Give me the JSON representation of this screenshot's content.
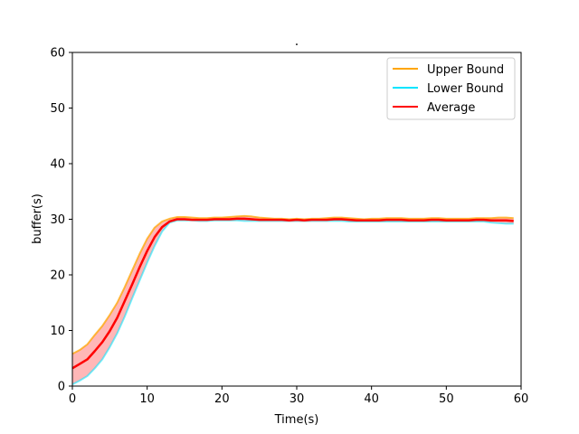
{
  "chart_data": {
    "type": "line",
    "title": ".",
    "xlabel": "Time(s)",
    "ylabel": "buffer(s)",
    "xlim": [
      0,
      60
    ],
    "ylim": [
      0,
      60
    ],
    "xticks": [
      "0",
      "10",
      "20",
      "30",
      "40",
      "50",
      "60"
    ],
    "yticks": [
      "0",
      "10",
      "20",
      "30",
      "40",
      "50",
      "60"
    ],
    "grid": false,
    "legend_position": "top-right",
    "band_color": "#ff9999",
    "x": [
      0,
      1,
      2,
      3,
      4,
      5,
      6,
      7,
      8,
      9,
      10,
      11,
      12,
      13,
      14,
      15,
      16,
      17,
      18,
      19,
      20,
      21,
      22,
      23,
      24,
      25,
      26,
      27,
      28,
      29,
      30,
      31,
      32,
      33,
      34,
      35,
      36,
      37,
      38,
      39,
      40,
      41,
      42,
      43,
      44,
      45,
      46,
      47,
      48,
      49,
      50,
      51,
      52,
      53,
      54,
      55,
      56,
      57,
      58,
      59
    ],
    "series": [
      {
        "name": "Upper Bound",
        "color": "#ffa500",
        "values": [
          5.8,
          6.5,
          7.5,
          9.2,
          10.8,
          12.8,
          15.0,
          17.8,
          20.8,
          23.8,
          26.5,
          28.5,
          29.6,
          30.1,
          30.4,
          30.4,
          30.3,
          30.2,
          30.2,
          30.3,
          30.3,
          30.4,
          30.5,
          30.6,
          30.5,
          30.3,
          30.2,
          30.1,
          30.1,
          30.0,
          30.1,
          30.0,
          30.1,
          30.1,
          30.2,
          30.3,
          30.3,
          30.2,
          30.1,
          30.0,
          30.1,
          30.1,
          30.2,
          30.2,
          30.2,
          30.1,
          30.1,
          30.1,
          30.2,
          30.2,
          30.1,
          30.1,
          30.1,
          30.1,
          30.2,
          30.2,
          30.2,
          30.3,
          30.3,
          30.2
        ]
      },
      {
        "name": "Lower Bound",
        "color": "#00e5ff",
        "values": [
          0.3,
          1.0,
          1.8,
          3.2,
          4.8,
          7.0,
          9.5,
          12.5,
          15.8,
          19.0,
          22.2,
          25.2,
          27.8,
          29.4,
          29.8,
          29.8,
          29.8,
          29.7,
          29.7,
          29.8,
          29.8,
          29.8,
          29.8,
          29.7,
          29.7,
          29.7,
          29.7,
          29.7,
          29.7,
          29.7,
          29.7,
          29.7,
          29.7,
          29.7,
          29.7,
          29.7,
          29.7,
          29.6,
          29.6,
          29.6,
          29.6,
          29.6,
          29.6,
          29.6,
          29.6,
          29.6,
          29.6,
          29.6,
          29.6,
          29.6,
          29.6,
          29.6,
          29.6,
          29.6,
          29.6,
          29.6,
          29.4,
          29.3,
          29.2,
          29.2
        ]
      },
      {
        "name": "Average",
        "color": "#ff0000",
        "values": [
          3.2,
          4.0,
          4.8,
          6.3,
          7.9,
          9.9,
          12.3,
          15.3,
          18.3,
          21.4,
          24.3,
          26.8,
          28.6,
          29.6,
          30.0,
          30.0,
          29.9,
          29.9,
          29.9,
          30.0,
          30.0,
          30.0,
          30.1,
          30.1,
          30.0,
          29.9,
          29.9,
          29.9,
          29.9,
          29.8,
          29.9,
          29.8,
          29.9,
          29.9,
          29.9,
          30.0,
          30.0,
          29.9,
          29.8,
          29.8,
          29.8,
          29.8,
          29.9,
          29.9,
          29.9,
          29.8,
          29.8,
          29.8,
          29.9,
          29.9,
          29.8,
          29.8,
          29.8,
          29.8,
          29.9,
          29.9,
          29.8,
          29.8,
          29.8,
          29.7
        ]
      }
    ]
  }
}
